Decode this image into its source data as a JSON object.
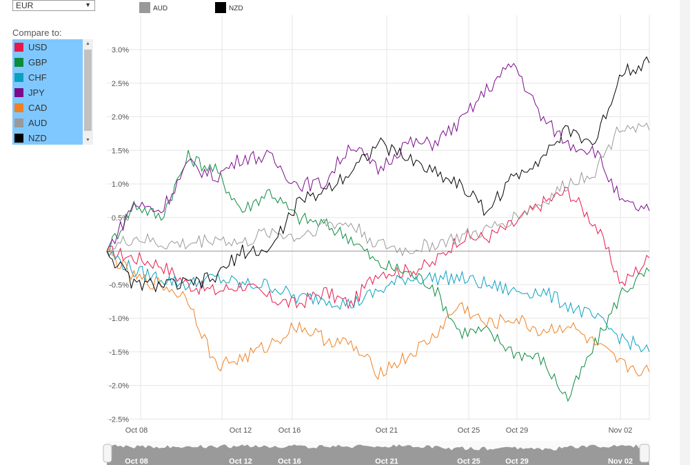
{
  "base_currency": "EUR",
  "compare_label": "Compare to:",
  "currencies": [
    {
      "code": "USD",
      "color": "#e8174a"
    },
    {
      "code": "GBP",
      "color": "#0c8a3e"
    },
    {
      "code": "CHF",
      "color": "#0aa0c0"
    },
    {
      "code": "JPY",
      "color": "#7a0a8a"
    },
    {
      "code": "CAD",
      "color": "#f08020"
    },
    {
      "code": "AUD",
      "color": "#999999"
    },
    {
      "code": "NZD",
      "color": "#000000"
    }
  ],
  "chart_data": {
    "type": "line",
    "legend": [
      {
        "name": "AUD",
        "color": "#999999"
      },
      {
        "name": "NZD",
        "color": "#000000"
      }
    ],
    "y_ticks": [
      "3.0%",
      "2.5%",
      "2.0%",
      "1.5%",
      "1.0%",
      "0.5%",
      "-0.5%",
      "-1.0%",
      "-1.5%",
      "-2.0%",
      "-2.5%"
    ],
    "x_ticks": [
      "Oct 08",
      "Oct 12",
      "Oct 16",
      "Oct 21",
      "Oct 25",
      "Oct 29",
      "Nov 02"
    ],
    "ylim": [
      -2.5,
      3.0
    ],
    "series": [
      {
        "name": "USD",
        "color": "#e8174a",
        "x": [
          0,
          4,
          8,
          12,
          16,
          20,
          24,
          28,
          32,
          36,
          40,
          44,
          48,
          52,
          56,
          60,
          64,
          68,
          72,
          76,
          80
        ],
        "y": [
          0,
          -0.1,
          -0.2,
          -0.5,
          -0.6,
          -0.5,
          -0.7,
          -0.8,
          -0.6,
          -0.8,
          -0.3,
          -0.3,
          -0.2,
          0.2,
          0.2,
          0.4,
          0.7,
          0.9,
          0.4,
          -0.5,
          -0.1
        ]
      },
      {
        "name": "GBP",
        "color": "#0c8a3e",
        "x": [
          0,
          4,
          8,
          12,
          16,
          20,
          24,
          28,
          32,
          36,
          40,
          44,
          48,
          52,
          56,
          60,
          64,
          68,
          72,
          76,
          80
        ],
        "y": [
          0,
          0.7,
          0.5,
          1.4,
          1.2,
          0.6,
          0.9,
          0.5,
          0.4,
          0.2,
          -0.2,
          -0.3,
          -0.5,
          -1.2,
          -1.2,
          -1.5,
          -1.6,
          -2.2,
          -1.4,
          -0.6,
          -0.3
        ]
      },
      {
        "name": "CHF",
        "color": "#0aa0c0",
        "x": [
          0,
          4,
          8,
          12,
          16,
          20,
          24,
          28,
          32,
          36,
          40,
          44,
          48,
          52,
          56,
          60,
          64,
          68,
          72,
          76,
          80
        ],
        "y": [
          0,
          -0.3,
          -0.4,
          -0.5,
          -0.4,
          -0.5,
          -0.5,
          -0.7,
          -0.7,
          -0.8,
          -0.6,
          -0.4,
          -0.4,
          -0.4,
          -0.5,
          -0.6,
          -0.6,
          -0.8,
          -1.0,
          -1.3,
          -1.5
        ]
      },
      {
        "name": "JPY",
        "color": "#7a0a8a",
        "x": [
          0,
          4,
          8,
          12,
          16,
          20,
          24,
          28,
          32,
          36,
          40,
          44,
          48,
          52,
          56,
          60,
          64,
          68,
          72,
          76,
          80
        ],
        "y": [
          0,
          0.7,
          0.6,
          1.3,
          1.1,
          1.4,
          1.4,
          1.0,
          1.0,
          1.6,
          1.2,
          1.6,
          1.6,
          1.9,
          2.4,
          2.8,
          2.0,
          1.6,
          1.5,
          0.7,
          0.6
        ]
      },
      {
        "name": "CAD",
        "color": "#f08020",
        "x": [
          0,
          4,
          8,
          12,
          16,
          20,
          24,
          28,
          32,
          36,
          40,
          44,
          48,
          52,
          56,
          60,
          64,
          68,
          72,
          76,
          80
        ],
        "y": [
          0,
          -0.4,
          -0.5,
          -0.7,
          -1.7,
          -1.6,
          -1.4,
          -1.1,
          -1.3,
          -1.4,
          -1.8,
          -1.6,
          -1.3,
          -0.8,
          -1.1,
          -1.0,
          -1.2,
          -1.1,
          -1.4,
          -1.7,
          -1.8
        ]
      },
      {
        "name": "AUD",
        "color": "#999999",
        "x": [
          0,
          4,
          8,
          12,
          16,
          20,
          24,
          28,
          32,
          36,
          40,
          44,
          48,
          52,
          56,
          60,
          64,
          68,
          72,
          76,
          80
        ],
        "y": [
          0,
          0.2,
          0.1,
          0.1,
          0.2,
          0.1,
          0.3,
          0.2,
          0.4,
          0.4,
          0.1,
          0.0,
          0.1,
          0.2,
          0.3,
          0.5,
          0.7,
          1.0,
          1.2,
          1.9,
          1.8
        ]
      },
      {
        "name": "NZD",
        "color": "#000000",
        "x": [
          0,
          4,
          8,
          12,
          16,
          20,
          24,
          28,
          32,
          36,
          40,
          44,
          48,
          52,
          56,
          60,
          64,
          68,
          72,
          76,
          80
        ],
        "y": [
          0,
          -0.5,
          -0.5,
          -0.5,
          -0.4,
          0.0,
          0.0,
          0.7,
          0.9,
          1.2,
          1.6,
          1.4,
          1.2,
          1.0,
          0.6,
          1.1,
          1.4,
          1.8,
          1.6,
          2.7,
          2.8
        ]
      }
    ]
  },
  "navigator_ticks": [
    "Oct 08",
    "Oct 12",
    "Oct 16",
    "Oct 21",
    "Oct 25",
    "Oct 29",
    "Nov 02"
  ]
}
